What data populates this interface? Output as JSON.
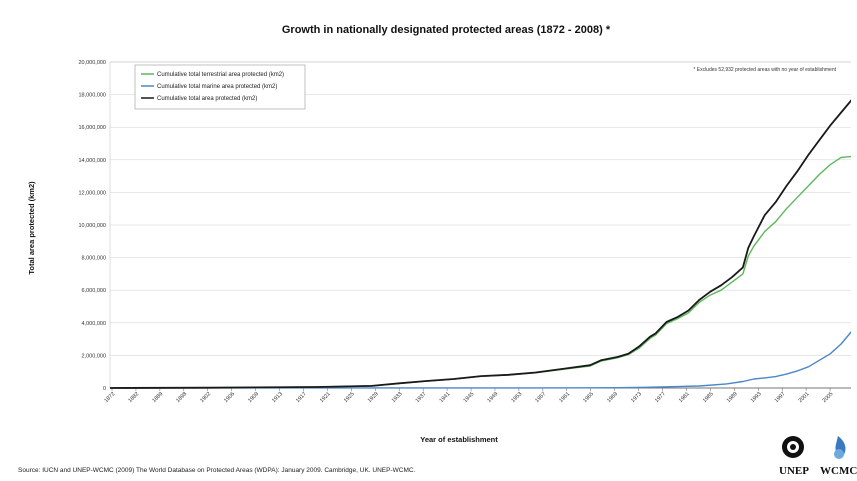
{
  "chart_data": {
    "type": "line",
    "title": "Growth in nationally designated protected areas (1872 - 2008) *",
    "xlabel": "Year of establishment",
    "ylabel": "Total area protected (km2)",
    "note": "* Excludes 52,932 protected areas with no year of establishment",
    "ylim": [
      0,
      20000000
    ],
    "xlim": [
      1872,
      2008
    ],
    "y_ticks": [
      "0",
      "2,000,000",
      "4,000,000",
      "6,000,000",
      "8,000,000",
      "10,000,000",
      "12,000,000",
      "14,000,000",
      "16,000,000",
      "18,000,000",
      "20,000,000"
    ],
    "x_ticks": [
      "1872",
      "1882",
      "1889",
      "1898",
      "1902",
      "1906",
      "1909",
      "1913",
      "1917",
      "1921",
      "1925",
      "1929",
      "1933",
      "1937",
      "1941",
      "1945",
      "1949",
      "1953",
      "1957",
      "1961",
      "1965",
      "1969",
      "1973",
      "1977",
      "1981",
      "1985",
      "1989",
      "1993",
      "1997",
      "2001",
      "2005"
    ],
    "grid": true,
    "legend_position": "top-left",
    "series": [
      {
        "name": "Cumulative total terrestrial area protected (km2)",
        "color": "#5cb85c",
        "x": [
          1872,
          1890,
          1910,
          1920,
          1925,
          1930,
          1935,
          1940,
          1945,
          1950,
          1955,
          1960,
          1962,
          1965,
          1967,
          1969,
          1971,
          1972,
          1974,
          1976,
          1978,
          1980,
          1982,
          1984,
          1986,
          1988,
          1989,
          1990,
          1992,
          1994,
          1996,
          1998,
          2000,
          2002,
          2004,
          2006,
          2008
        ],
        "y": [
          0,
          20000,
          60000,
          120000,
          280000,
          420000,
          540000,
          720000,
          800000,
          930000,
          1150000,
          1350000,
          1650000,
          1850000,
          2050000,
          2450000,
          3050000,
          3250000,
          3950000,
          4250000,
          4600000,
          5250000,
          5700000,
          6000000,
          6500000,
          7000000,
          8100000,
          8700000,
          9600000,
          10200000,
          11000000,
          11700000,
          12400000,
          13100000,
          13700000,
          14150000,
          14200000
        ]
      },
      {
        "name": "Cumulative total marine area protected (km2)",
        "color": "#4a86c8",
        "x": [
          1872,
          1950,
          1960,
          1965,
          1970,
          1975,
          1980,
          1985,
          1988,
          1990,
          1992,
          1994,
          1996,
          1998,
          2000,
          2002,
          2004,
          2006,
          2008
        ],
        "y": [
          0,
          5000,
          10000,
          20000,
          40000,
          80000,
          120000,
          250000,
          400000,
          550000,
          620000,
          700000,
          850000,
          1050000,
          1300000,
          1700000,
          2100000,
          2700000,
          3500000
        ]
      },
      {
        "name": "Cumulative total area protected (km2)",
        "color": "#1a1a1a",
        "x": [
          1872,
          1890,
          1910,
          1920,
          1925,
          1930,
          1935,
          1940,
          1945,
          1950,
          1955,
          1960,
          1962,
          1965,
          1967,
          1969,
          1971,
          1972,
          1974,
          1976,
          1978,
          1980,
          1982,
          1984,
          1986,
          1988,
          1989,
          1990,
          1992,
          1994,
          1996,
          1998,
          2000,
          2002,
          2004,
          2006,
          2008
        ],
        "y": [
          0,
          20000,
          60000,
          130000,
          290000,
          430000,
          550000,
          730000,
          810000,
          950000,
          1170000,
          1400000,
          1700000,
          1900000,
          2100000,
          2550000,
          3150000,
          3350000,
          4050000,
          4350000,
          4750000,
          5400000,
          5900000,
          6300000,
          6800000,
          7400000,
          8600000,
          9300000,
          10600000,
          11400000,
          12400000,
          13300000,
          14300000,
          15200000,
          16100000,
          16900000,
          17700000
        ]
      }
    ]
  },
  "footer": {
    "source": "Source: IUCN and UNEP-WCMC (2009) The World Database on Protected Areas (WDPA): January 2009. Cambridge, UK. UNEP-WCMC."
  },
  "logos": {
    "left": "UNEP",
    "right": "WCMC"
  }
}
